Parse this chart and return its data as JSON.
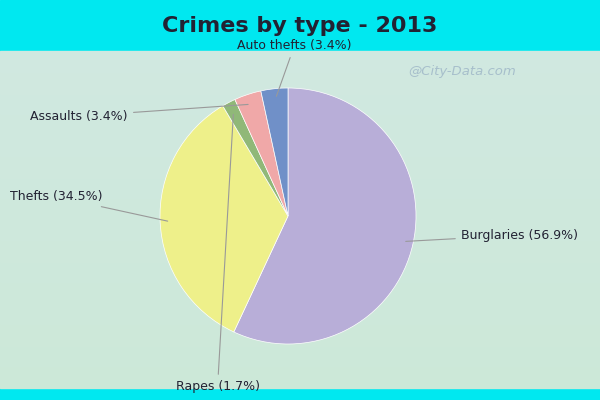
{
  "title": "Crimes by type - 2013",
  "slices": [
    {
      "label": "Burglaries",
      "pct": 56.9,
      "color": "#b8aed8"
    },
    {
      "label": "Thefts",
      "pct": 34.5,
      "color": "#eef08a"
    },
    {
      "label": "Rapes",
      "pct": 1.7,
      "color": "#90b878"
    },
    {
      "label": "Assaults",
      "pct": 3.4,
      "color": "#f0a8a8"
    },
    {
      "label": "Auto thefts",
      "pct": 3.4,
      "color": "#7090c8"
    }
  ],
  "bg_top_color": "#00e8f0",
  "bg_bottom_color": "#00e8f0",
  "bg_grad_top": "#d0e8e0",
  "bg_grad_bottom": "#cce8d8",
  "watermark": "@City-Data.com",
  "title_fontsize": 16,
  "label_fontsize": 9,
  "startangle": 90,
  "title_color": "#222233"
}
